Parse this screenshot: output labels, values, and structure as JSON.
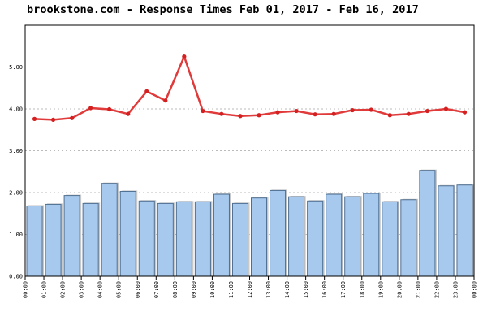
{
  "colors": {
    "bar_fill": "#a8c9ee",
    "bar_edge": "#4f6f91",
    "line": "#e03a3a",
    "marker": "#d42020",
    "grid": "#bbbbbb",
    "axis": "#000000"
  },
  "chart_data": {
    "type": "bar+line",
    "title": "brookstone.com - Response Times Feb 01, 2017 - Feb 16, 2017",
    "xlabel": "",
    "ylabel": "",
    "ylim": [
      0,
      6
    ],
    "yticks": [
      "0.00",
      "1.00",
      "2.00",
      "3.00",
      "4.00",
      "5.00"
    ],
    "grid": true,
    "legend": "none",
    "xticks": [
      "00:00",
      "01:00",
      "02:00",
      "03:00",
      "04:00",
      "05:00",
      "06:00",
      "07:00",
      "08:00",
      "09:00",
      "10:00",
      "11:00",
      "12:00",
      "13:00",
      "14:00",
      "15:00",
      "16:00",
      "17:00",
      "18:00",
      "19:00",
      "20:00",
      "21:00",
      "22:00",
      "23:00",
      "00:00"
    ],
    "series": [
      {
        "kind": "bar",
        "values": [
          1.68,
          1.72,
          1.93,
          1.74,
          2.22,
          2.03,
          1.8,
          1.74,
          1.78,
          1.78,
          1.96,
          1.74,
          1.87,
          2.05,
          1.9,
          1.8,
          1.96,
          1.9,
          1.98,
          1.78,
          1.83,
          2.53,
          2.16,
          2.18
        ]
      },
      {
        "kind": "line",
        "values": [
          3.76,
          3.74,
          3.78,
          4.02,
          3.99,
          3.88,
          4.42,
          4.2,
          5.25,
          3.95,
          3.88,
          3.83,
          3.85,
          3.92,
          3.95,
          3.87,
          3.88,
          3.97,
          3.98,
          3.85,
          3.88,
          3.95,
          4.0,
          3.92
        ]
      }
    ]
  }
}
